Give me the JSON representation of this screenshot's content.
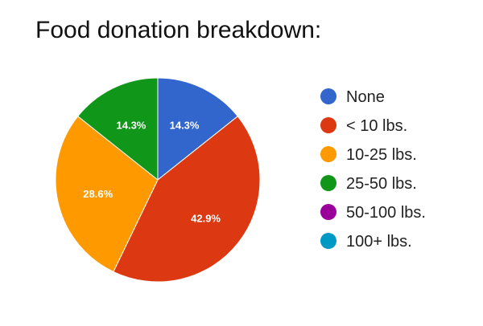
{
  "chart_data": {
    "type": "pie",
    "title": "Food donation breakdown:",
    "legend_position": "right",
    "start_angle_deg": 90,
    "direction": "clockwise",
    "slices": [
      {
        "name": "None",
        "value": 14.3,
        "label": "14.3%",
        "color": "#3366cc"
      },
      {
        "name": "< 10 lbs.",
        "value": 42.9,
        "label": "42.9%",
        "color": "#dc3912"
      },
      {
        "name": "10-25 lbs.",
        "value": 28.6,
        "label": "28.6%",
        "color": "#ff9900"
      },
      {
        "name": "25-50 lbs.",
        "value": 14.3,
        "label": "14.3%",
        "color": "#109618"
      },
      {
        "name": "50-100 lbs.",
        "value": 0,
        "label": "",
        "color": "#990099"
      },
      {
        "name": "100+ lbs.",
        "value": 0,
        "label": "",
        "color": "#0099c6"
      }
    ]
  }
}
